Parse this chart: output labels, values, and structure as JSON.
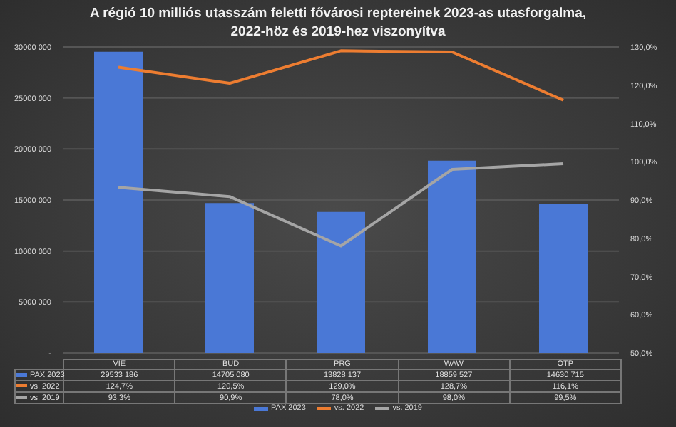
{
  "chart_data": {
    "type": "bar",
    "title": "A régió 10 milliós utasszám feletti fővárosi reptereinek 2023-as utasforgalma,\n2022-höz és 2019-hez viszonyítva",
    "categories": [
      "VIE",
      "BUD",
      "PRG",
      "WAW",
      "OTP"
    ],
    "series": [
      {
        "name": "PAX 2023",
        "color": "#4a78d6",
        "values": [
          29533186,
          14705080,
          13828137,
          18859527,
          14630715
        ],
        "value_labels": [
          "29533 186",
          "14705 080",
          "13828 137",
          "18859 527",
          "14630 715"
        ]
      },
      {
        "name": "vs. 2022",
        "type": "line",
        "axis": "y2",
        "color": "#ed7d31",
        "values": [
          124.7,
          120.5,
          129.0,
          128.7,
          116.1
        ],
        "value_labels": [
          "124,7%",
          "120,5%",
          "129,0%",
          "128,7%",
          "116,1%"
        ]
      },
      {
        "name": "vs. 2019",
        "type": "line",
        "axis": "y2",
        "color": "#a5a5a5",
        "values": [
          93.3,
          90.9,
          78.0,
          98.0,
          99.5
        ],
        "value_labels": [
          "93,3%",
          "90,9%",
          "78,0%",
          "98,0%",
          "99,5%"
        ]
      }
    ],
    "ylim": [
      0,
      30000000
    ],
    "yticks": [
      {
        "value": 0,
        "label": "-"
      },
      {
        "value": 5000000,
        "label": "5000 000"
      },
      {
        "value": 10000000,
        "label": "10000 000"
      },
      {
        "value": 15000000,
        "label": "15000 000"
      },
      {
        "value": 20000000,
        "label": "20000 000"
      },
      {
        "value": 25000000,
        "label": "25000 000"
      },
      {
        "value": 30000000,
        "label": "30000 000"
      }
    ],
    "y2lim": [
      50,
      130
    ],
    "y2ticks": [
      {
        "value": 50,
        "label": "50,0%"
      },
      {
        "value": 60,
        "label": "60,0%"
      },
      {
        "value": 70,
        "label": "70,0%"
      },
      {
        "value": 80,
        "label": "80,0%"
      },
      {
        "value": 90,
        "label": "90,0%"
      },
      {
        "value": 100,
        "label": "100,0%"
      },
      {
        "value": 110,
        "label": "110,0%"
      },
      {
        "value": 120,
        "label": "120,0%"
      },
      {
        "value": 130,
        "label": "130,0%"
      }
    ],
    "grid": "y",
    "legend": "bottom",
    "marker": "none",
    "line_style": "solid"
  }
}
